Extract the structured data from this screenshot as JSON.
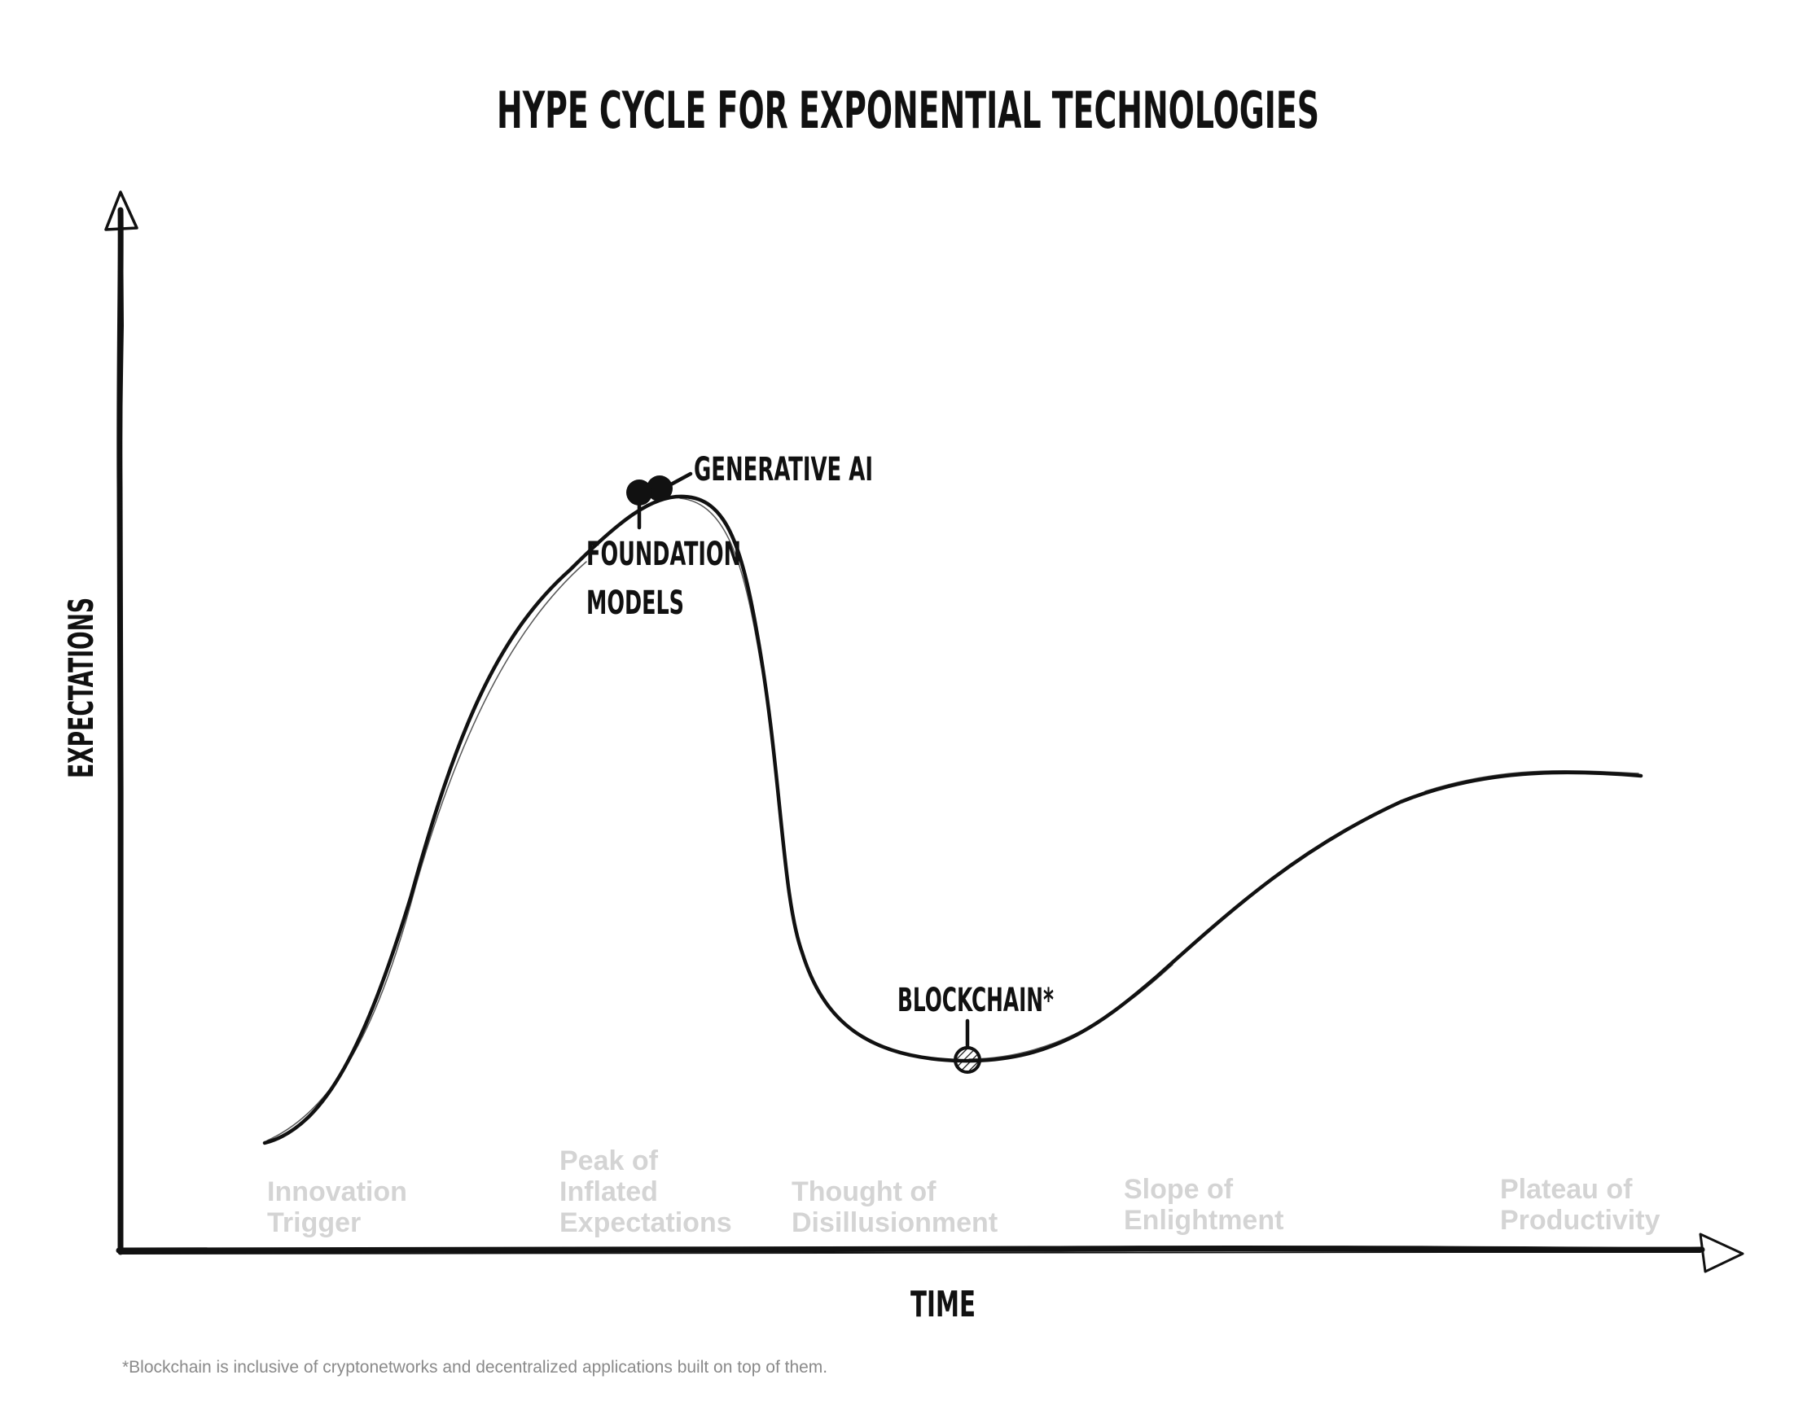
{
  "title": "HYPE CYCLE FOR EXPONENTIAL TECHNOLOGIES",
  "axes": {
    "y_label": "EXPECTATIONS",
    "x_label": "TIME"
  },
  "phases": [
    {
      "lines": [
        "Innovation",
        "Trigger"
      ]
    },
    {
      "lines": [
        "Peak of",
        "Inflated",
        "Expectations"
      ]
    },
    {
      "lines": [
        "Thought of",
        "Disillusionment"
      ]
    },
    {
      "lines": [
        "Slope of",
        "Enlightment"
      ]
    },
    {
      "lines": [
        "Plateau of",
        "Productivity"
      ]
    }
  ],
  "technologies": [
    {
      "name": "GENERATIVE AI",
      "marker": "solid"
    },
    {
      "name_lines": [
        "FOUNDATION",
        "MODELS"
      ],
      "marker": "solid"
    },
    {
      "name": "BLOCKCHAIN*",
      "marker": "hatched"
    }
  ],
  "footnote": "*Blockchain is inclusive of cryptonetworks and decentralized applications built on top of them.",
  "colors": {
    "ink": "#111111",
    "phase_text": "#d4d4d4",
    "footnote_text": "#8a8a8a",
    "background": "#ffffff"
  }
}
